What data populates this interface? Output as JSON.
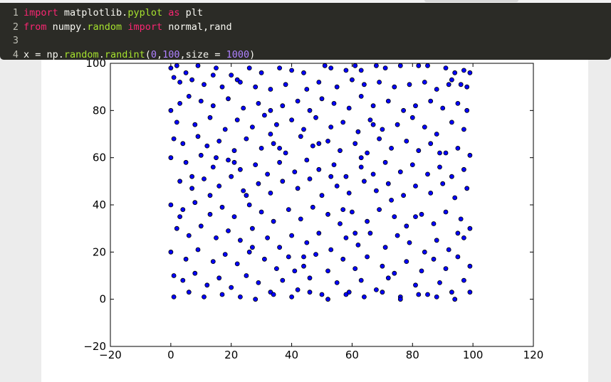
{
  "editor": {
    "lines": [
      {
        "num": "1",
        "tokens": [
          {
            "t": "import",
            "c": "kw"
          },
          {
            "t": " matplotlib.",
            "c": ""
          },
          {
            "t": "pyplot",
            "c": "nm"
          },
          {
            "t": " ",
            "c": ""
          },
          {
            "t": "as",
            "c": "kw"
          },
          {
            "t": " plt",
            "c": ""
          }
        ]
      },
      {
        "num": "2",
        "tokens": [
          {
            "t": "from",
            "c": "kw"
          },
          {
            "t": " numpy.",
            "c": ""
          },
          {
            "t": "random",
            "c": "nm"
          },
          {
            "t": " ",
            "c": ""
          },
          {
            "t": "import",
            "c": "kw"
          },
          {
            "t": " normal,rand",
            "c": ""
          }
        ]
      },
      {
        "num": "3",
        "tokens": []
      },
      {
        "num": "4",
        "tokens": [
          {
            "t": "x = np.",
            "c": ""
          },
          {
            "t": "random",
            "c": "nm"
          },
          {
            "t": ".",
            "c": ""
          },
          {
            "t": "randint",
            "c": "nm"
          },
          {
            "t": "(",
            "c": ""
          },
          {
            "t": "0",
            "c": "num"
          },
          {
            "t": ",",
            "c": ""
          },
          {
            "t": "100",
            "c": "num"
          },
          {
            "t": ",size = ",
            "c": ""
          },
          {
            "t": "1000",
            "c": "num"
          },
          {
            "t": ")",
            "c": ""
          }
        ]
      }
    ]
  },
  "colors": {
    "editor_bg": "#2b2b26",
    "keyword": "#f92672",
    "name": "#a6e22e",
    "number": "#ae81ff",
    "marker_fill": "#0000ff",
    "marker_edge": "#000000"
  },
  "chart_data": {
    "type": "scatter",
    "title": "",
    "xlabel": "",
    "ylabel": "",
    "xlim": [
      -20,
      120
    ],
    "ylim": [
      -20,
      100
    ],
    "xticks": [
      -20,
      0,
      20,
      40,
      60,
      80,
      100,
      120
    ],
    "yticks": [
      -20,
      0,
      20,
      40,
      60,
      80,
      100
    ],
    "xtick_labels": [
      "−20",
      "0",
      "20",
      "40",
      "60",
      "80",
      "100",
      "120"
    ],
    "ytick_labels": [
      "−20",
      "0",
      "20",
      "40",
      "60",
      "80",
      "100"
    ],
    "grid": false,
    "marker": "circle",
    "points": [
      [
        0,
        98
      ],
      [
        2,
        99
      ],
      [
        5,
        96
      ],
      [
        9,
        99
      ],
      [
        15,
        98
      ],
      [
        14,
        95
      ],
      [
        20,
        95
      ],
      [
        22,
        93
      ],
      [
        26,
        98
      ],
      [
        30,
        96
      ],
      [
        36,
        98
      ],
      [
        40,
        97
      ],
      [
        44,
        96
      ],
      [
        51,
        99
      ],
      [
        53,
        98
      ],
      [
        58,
        97
      ],
      [
        61,
        99
      ],
      [
        63,
        97
      ],
      [
        68,
        99
      ],
      [
        71,
        98
      ],
      [
        76,
        99
      ],
      [
        82,
        99
      ],
      [
        85,
        99
      ],
      [
        91,
        98
      ],
      [
        94,
        96
      ],
      [
        97,
        97
      ],
      [
        99,
        96
      ],
      [
        93,
        93
      ],
      [
        96,
        91
      ],
      [
        98,
        90
      ],
      [
        1,
        94
      ],
      [
        3,
        92
      ],
      [
        7,
        93
      ],
      [
        11,
        91
      ],
      [
        17,
        90
      ],
      [
        23,
        92
      ],
      [
        28,
        90
      ],
      [
        33,
        89
      ],
      [
        38,
        91
      ],
      [
        45,
        89
      ],
      [
        49,
        92
      ],
      [
        55,
        90
      ],
      [
        60,
        93
      ],
      [
        64,
        91
      ],
      [
        69,
        92
      ],
      [
        74,
        90
      ],
      [
        79,
        91
      ],
      [
        84,
        92
      ],
      [
        88,
        89
      ],
      [
        92,
        91
      ],
      [
        0,
        80
      ],
      [
        3,
        83
      ],
      [
        6,
        86
      ],
      [
        10,
        84
      ],
      [
        14,
        82
      ],
      [
        19,
        85
      ],
      [
        24,
        81
      ],
      [
        29,
        83
      ],
      [
        33,
        80
      ],
      [
        37,
        82
      ],
      [
        42,
        84
      ],
      [
        46,
        80
      ],
      [
        50,
        85
      ],
      [
        54,
        83
      ],
      [
        59,
        81
      ],
      [
        63,
        86
      ],
      [
        67,
        82
      ],
      [
        72,
        84
      ],
      [
        77,
        80
      ],
      [
        81,
        82
      ],
      [
        86,
        84
      ],
      [
        90,
        81
      ],
      [
        95,
        83
      ],
      [
        98,
        80
      ],
      [
        2,
        75
      ],
      [
        8,
        74
      ],
      [
        13,
        77
      ],
      [
        18,
        72
      ],
      [
        22,
        76
      ],
      [
        27,
        73
      ],
      [
        31,
        78
      ],
      [
        35,
        74
      ],
      [
        40,
        76
      ],
      [
        44,
        72
      ],
      [
        48,
        77
      ],
      [
        53,
        73
      ],
      [
        57,
        75
      ],
      [
        62,
        71
      ],
      [
        66,
        76
      ],
      [
        70,
        72
      ],
      [
        75,
        74
      ],
      [
        80,
        77
      ],
      [
        84,
        73
      ],
      [
        88,
        70
      ],
      [
        93,
        75
      ],
      [
        97,
        72
      ],
      [
        1,
        68
      ],
      [
        4,
        66
      ],
      [
        9,
        69
      ],
      [
        12,
        65
      ],
      [
        16,
        67
      ],
      [
        21,
        63
      ],
      [
        25,
        68
      ],
      [
        30,
        64
      ],
      [
        34,
        66
      ],
      [
        38,
        62
      ],
      [
        43,
        69
      ],
      [
        47,
        65
      ],
      [
        52,
        67
      ],
      [
        56,
        63
      ],
      [
        61,
        66
      ],
      [
        65,
        62
      ],
      [
        69,
        68
      ],
      [
        73,
        64
      ],
      [
        78,
        67
      ],
      [
        82,
        63
      ],
      [
        86,
        66
      ],
      [
        91,
        62
      ],
      [
        95,
        64
      ],
      [
        99,
        61
      ],
      [
        0,
        60
      ],
      [
        5,
        58
      ],
      [
        10,
        61
      ],
      [
        14,
        56
      ],
      [
        19,
        59
      ],
      [
        23,
        55
      ],
      [
        28,
        57
      ],
      [
        32,
        53
      ],
      [
        36,
        58
      ],
      [
        41,
        54
      ],
      [
        45,
        59
      ],
      [
        49,
        55
      ],
      [
        54,
        57
      ],
      [
        58,
        52
      ],
      [
        63,
        56
      ],
      [
        67,
        53
      ],
      [
        71,
        58
      ],
      [
        76,
        54
      ],
      [
        80,
        57
      ],
      [
        85,
        53
      ],
      [
        89,
        56
      ],
      [
        93,
        52
      ],
      [
        97,
        55
      ],
      [
        3,
        50
      ],
      [
        7,
        47
      ],
      [
        11,
        51
      ],
      [
        16,
        48
      ],
      [
        20,
        52
      ],
      [
        24,
        46
      ],
      [
        29,
        49
      ],
      [
        33,
        45
      ],
      [
        37,
        50
      ],
      [
        42,
        47
      ],
      [
        46,
        51
      ],
      [
        50,
        44
      ],
      [
        55,
        48
      ],
      [
        59,
        45
      ],
      [
        64,
        50
      ],
      [
        68,
        46
      ],
      [
        72,
        49
      ],
      [
        77,
        44
      ],
      [
        81,
        48
      ],
      [
        86,
        45
      ],
      [
        90,
        49
      ],
      [
        94,
        43
      ],
      [
        98,
        47
      ],
      [
        0,
        40
      ],
      [
        4,
        38
      ],
      [
        8,
        41
      ],
      [
        13,
        36
      ],
      [
        17,
        39
      ],
      [
        21,
        35
      ],
      [
        26,
        40
      ],
      [
        30,
        37
      ],
      [
        34,
        33
      ],
      [
        39,
        38
      ],
      [
        43,
        34
      ],
      [
        47,
        39
      ],
      [
        52,
        36
      ],
      [
        56,
        32
      ],
      [
        60,
        37
      ],
      [
        65,
        33
      ],
      [
        69,
        38
      ],
      [
        74,
        35
      ],
      [
        78,
        31
      ],
      [
        83,
        36
      ],
      [
        87,
        32
      ],
      [
        91,
        37
      ],
      [
        96,
        34
      ],
      [
        99,
        30
      ],
      [
        2,
        30
      ],
      [
        6,
        27
      ],
      [
        10,
        31
      ],
      [
        15,
        26
      ],
      [
        19,
        29
      ],
      [
        23,
        25
      ],
      [
        27,
        30
      ],
      [
        32,
        26
      ],
      [
        36,
        22
      ],
      [
        40,
        27
      ],
      [
        45,
        24
      ],
      [
        49,
        28
      ],
      [
        53,
        21
      ],
      [
        58,
        26
      ],
      [
        62,
        23
      ],
      [
        66,
        28
      ],
      [
        71,
        22
      ],
      [
        75,
        27
      ],
      [
        79,
        24
      ],
      [
        84,
        20
      ],
      [
        88,
        25
      ],
      [
        92,
        21
      ],
      [
        97,
        26
      ],
      [
        0,
        20
      ],
      [
        5,
        17
      ],
      [
        9,
        21
      ],
      [
        14,
        16
      ],
      [
        18,
        19
      ],
      [
        22,
        15
      ],
      [
        26,
        20
      ],
      [
        31,
        17
      ],
      [
        35,
        13
      ],
      [
        39,
        18
      ],
      [
        44,
        14
      ],
      [
        48,
        19
      ],
      [
        52,
        12
      ],
      [
        57,
        17
      ],
      [
        61,
        13
      ],
      [
        65,
        18
      ],
      [
        70,
        14
      ],
      [
        74,
        11
      ],
      [
        78,
        16
      ],
      [
        83,
        12
      ],
      [
        87,
        17
      ],
      [
        91,
        13
      ],
      [
        95,
        18
      ],
      [
        99,
        14
      ],
      [
        1,
        10
      ],
      [
        4,
        8
      ],
      [
        8,
        11
      ],
      [
        12,
        6
      ],
      [
        16,
        9
      ],
      [
        20,
        5
      ],
      [
        25,
        10
      ],
      [
        29,
        7
      ],
      [
        33,
        3
      ],
      [
        37,
        8
      ],
      [
        42,
        4
      ],
      [
        46,
        9
      ],
      [
        50,
        2
      ],
      [
        55,
        7
      ],
      [
        59,
        3
      ],
      [
        63,
        8
      ],
      [
        68,
        4
      ],
      [
        72,
        9
      ],
      [
        76,
        1
      ],
      [
        81,
        6
      ],
      [
        85,
        2
      ],
      [
        89,
        7
      ],
      [
        93,
        3
      ],
      [
        97,
        8
      ],
      [
        1,
        1
      ],
      [
        6,
        3
      ],
      [
        11,
        1
      ],
      [
        17,
        2
      ],
      [
        23,
        1
      ],
      [
        28,
        0
      ],
      [
        34,
        2
      ],
      [
        40,
        1
      ],
      [
        46,
        3
      ],
      [
        52,
        0
      ],
      [
        58,
        2
      ],
      [
        64,
        1
      ],
      [
        70,
        3
      ],
      [
        76,
        0
      ],
      [
        82,
        2
      ],
      [
        88,
        1
      ],
      [
        94,
        0
      ],
      [
        99,
        3
      ],
      [
        3,
        35
      ],
      [
        13,
        44
      ],
      [
        21,
        58
      ],
      [
        27,
        22
      ],
      [
        36,
        64
      ],
      [
        44,
        18
      ],
      [
        53,
        52
      ],
      [
        61,
        28
      ],
      [
        67,
        74
      ],
      [
        73,
        42
      ],
      [
        81,
        35
      ],
      [
        89,
        62
      ],
      [
        95,
        28
      ],
      [
        7,
        52
      ],
      [
        15,
        60
      ],
      [
        25,
        44
      ],
      [
        33,
        70
      ],
      [
        41,
        12
      ],
      [
        49,
        66
      ],
      [
        57,
        38
      ],
      [
        63,
        60
      ]
    ]
  }
}
